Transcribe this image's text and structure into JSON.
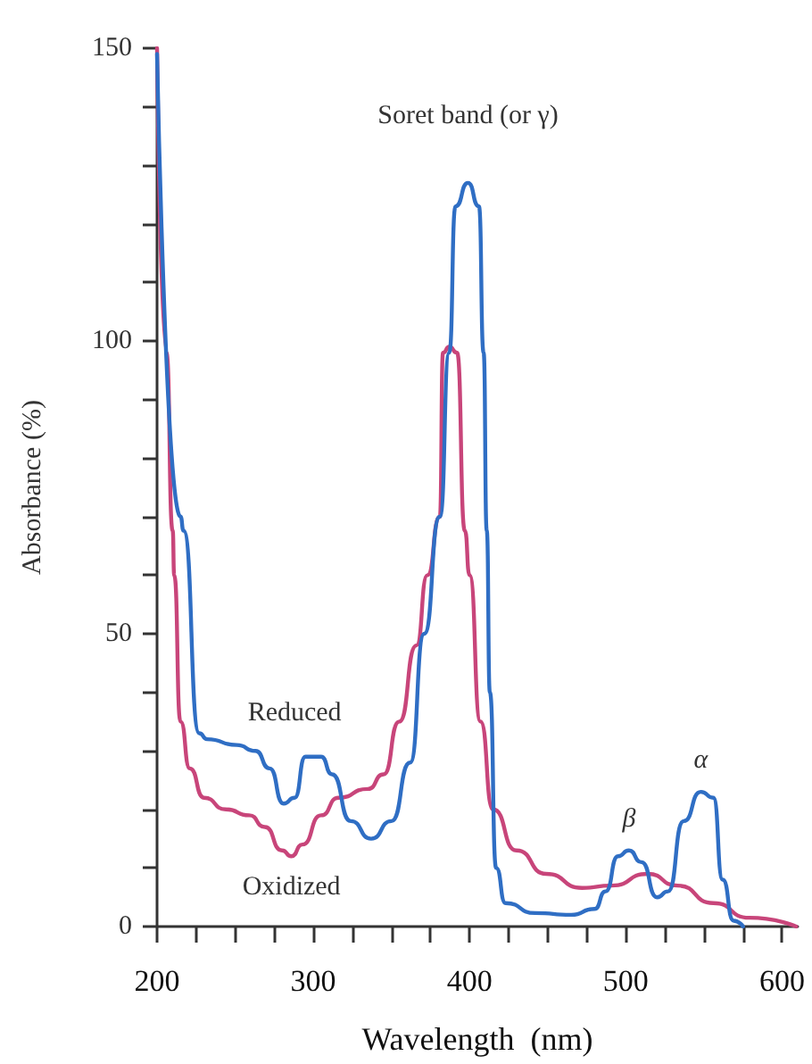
{
  "chart_data": {
    "type": "line",
    "xlabel": "Wavelength  (nm)",
    "ylabel": "Absorbance (%)",
    "xlim": [
      200,
      610
    ],
    "ylim": [
      0,
      150
    ],
    "xticks": [
      200,
      {
        "value": 225,
        "label": null
      },
      {
        "value": 250,
        "label": null
      },
      {
        "value": 275,
        "label": null
      },
      300,
      {
        "value": 325,
        "label": null
      },
      {
        "value": 350,
        "label": null
      },
      {
        "value": 375,
        "label": null
      },
      400,
      {
        "value": 425,
        "label": null
      },
      {
        "value": 450,
        "label": null
      },
      {
        "value": 475,
        "label": null
      },
      500,
      {
        "value": 525,
        "label": null
      },
      {
        "value": 550,
        "label": null
      },
      {
        "value": 575,
        "label": null
      },
      600
    ],
    "yticks": [
      0,
      {
        "value": 10,
        "label": null
      },
      {
        "value": 20,
        "label": null
      },
      {
        "value": 30,
        "label": null
      },
      {
        "value": 40,
        "label": null
      },
      50,
      {
        "value": 60,
        "label": null
      },
      {
        "value": 70,
        "label": null
      },
      {
        "value": 80,
        "label": null
      },
      {
        "value": 90,
        "label": null
      },
      100,
      {
        "value": 110,
        "label": null
      },
      {
        "value": 120,
        "label": null
      },
      {
        "value": 130,
        "label": null
      },
      {
        "value": 140,
        "label": null
      },
      150
    ],
    "grid": false,
    "legend": false,
    "marker": "none",
    "line_style": "solid",
    "series": [
      {
        "name": "Reduced",
        "color": "#2f6ec4",
        "x": [
          200,
          215,
          217,
          227,
          232,
          251,
          263,
          272,
          281,
          288,
          295,
          305,
          312,
          324,
          337,
          350,
          362,
          371,
          381,
          387,
          391,
          399,
          406,
          409,
          411,
          413,
          417,
          423,
          442,
          465,
          480,
          487,
          495,
          502,
          510,
          520,
          527,
          537,
          548,
          556,
          562,
          569,
          575
        ],
        "values": [
          149,
          70,
          67.6,
          33,
          32,
          31,
          30,
          27,
          21,
          22,
          29,
          29,
          26,
          18,
          15,
          18,
          28,
          50,
          70,
          98,
          123,
          127,
          123,
          98,
          67.6,
          40,
          10,
          4,
          2.3,
          2,
          3,
          6,
          12,
          13,
          11,
          5,
          6,
          18,
          23,
          22,
          8,
          1,
          0
        ]
      },
      {
        "name": "Oxidized",
        "color": "#c8457a",
        "x": [
          200,
          206,
          210,
          211,
          215,
          221,
          230,
          244,
          259,
          269,
          280,
          286,
          293,
          305,
          316,
          335,
          345,
          355,
          366,
          373,
          381,
          383,
          387,
          392,
          397,
          400,
          407,
          415,
          430,
          449,
          472,
          491,
          514,
          533,
          556,
          579,
          609
        ],
        "values": [
          150,
          98,
          67.6,
          60,
          35,
          27,
          22,
          20,
          19,
          17,
          13,
          12,
          14,
          19,
          22,
          23.5,
          26,
          35,
          48,
          60,
          70,
          98,
          99,
          98,
          67.6,
          60,
          35,
          20,
          13,
          9,
          6.6,
          7,
          9,
          7,
          4,
          1.5,
          0
        ]
      }
    ],
    "annotations": [
      {
        "text": "Soret band (or γ)",
        "x": 399,
        "y": 127
      },
      {
        "text": "β",
        "x": 502,
        "y": 13
      },
      {
        "text": "α",
        "x": 548,
        "y": 23
      }
    ]
  }
}
